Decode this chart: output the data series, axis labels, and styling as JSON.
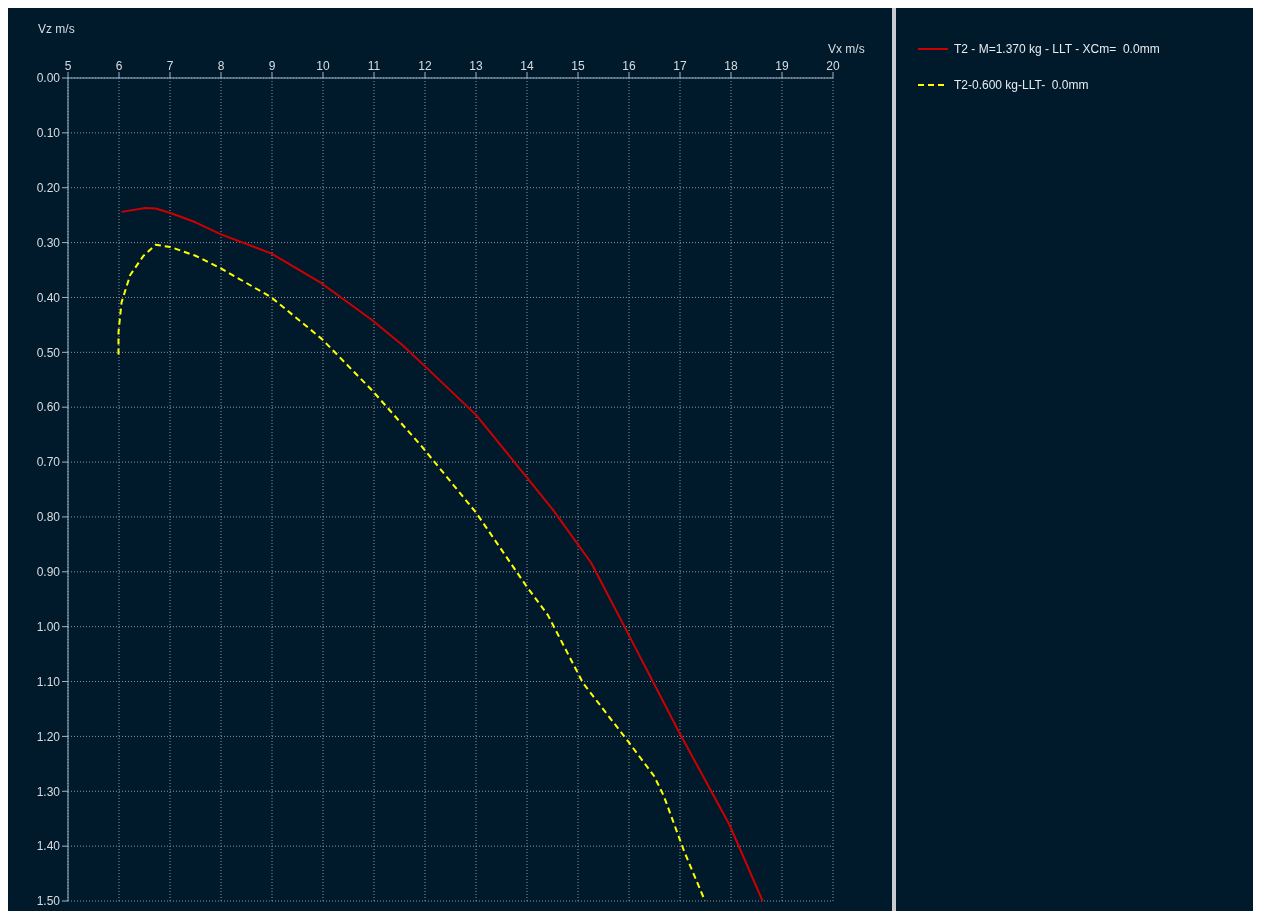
{
  "chart_data": {
    "type": "line",
    "xlabel": "Vx m/s",
    "ylabel": "Vz m/s",
    "xlim": [
      5,
      20
    ],
    "xticks": [
      5,
      6,
      7,
      8,
      9,
      10,
      11,
      12,
      13,
      14,
      15,
      16,
      17,
      18,
      19,
      20
    ],
    "ylim": [
      1.5,
      0
    ],
    "yticks": [
      {
        "value": 0,
        "label": "0.00"
      },
      {
        "value": 0.1,
        "label": "0.10"
      },
      {
        "value": 0.2,
        "label": "0.20"
      },
      {
        "value": 0.3,
        "label": "0.30"
      },
      {
        "value": 0.4,
        "label": "0.40"
      },
      {
        "value": 0.5,
        "label": "0.50"
      },
      {
        "value": 0.6,
        "label": "0.60"
      },
      {
        "value": 0.7,
        "label": "0.70"
      },
      {
        "value": 0.8,
        "label": "0.80"
      },
      {
        "value": 0.9,
        "label": "0.90"
      },
      {
        "value": 1.0,
        "label": "1.00"
      },
      {
        "value": 1.1,
        "label": "1.10"
      },
      {
        "value": 1.2,
        "label": "1.20"
      },
      {
        "value": 1.3,
        "label": "1.30"
      },
      {
        "value": 1.4,
        "label": "1.40"
      },
      {
        "value": 1.5,
        "label": "1.50"
      }
    ],
    "grid": true,
    "legend": "top right",
    "marker": "none",
    "series": [
      {
        "name": "T2 - M=1.370 kg - LLT - XCm=  0.0mm",
        "color": "#cc0000",
        "line_style": "solid",
        "x": [
          6.05,
          6.52,
          6.72,
          7.01,
          7.5,
          8.0,
          8.99,
          9.97,
          10.96,
          11.55,
          11.95,
          13.0,
          13.98,
          14.51,
          15.26,
          15.99,
          16.98,
          17.97,
          18.62
        ],
        "values": [
          0.244,
          0.237,
          0.238,
          0.246,
          0.263,
          0.285,
          0.32,
          0.374,
          0.441,
          0.486,
          0.521,
          0.614,
          0.726,
          0.787,
          0.884,
          1.014,
          1.192,
          1.361,
          1.5
        ]
      },
      {
        "name": "T2-0.600 kg-LLT-  0.0mm",
        "color": "#ffff00",
        "line_style": "dashed",
        "x": [
          5.99,
          5.99,
          6.05,
          6.22,
          6.48,
          6.72,
          7.01,
          7.5,
          8.0,
          8.99,
          9.97,
          10.96,
          11.95,
          13.0,
          13.98,
          14.41,
          15.1,
          15.99,
          16.49,
          16.68,
          17.08,
          17.49
        ],
        "values": [
          0.504,
          0.463,
          0.409,
          0.359,
          0.324,
          0.304,
          0.308,
          0.324,
          0.347,
          0.4,
          0.475,
          0.569,
          0.673,
          0.792,
          0.925,
          0.979,
          1.103,
          1.21,
          1.272,
          1.308,
          1.409,
          1.5
        ]
      }
    ]
  }
}
